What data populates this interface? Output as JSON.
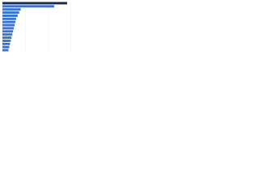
{
  "chart_data": {
    "type": "hbar",
    "categories": [
      null,
      null,
      null,
      null,
      null,
      null,
      null,
      null,
      null,
      null,
      null,
      null,
      null,
      null,
      null,
      null
    ],
    "values": [
      85,
      68,
      24,
      22,
      20,
      18,
      17,
      16,
      15,
      14,
      13,
      12,
      11,
      10,
      9,
      8
    ],
    "colors": [
      "#1b2a4a",
      "#3a74d0",
      "#3a74d0",
      "#3a74d0",
      "#3a74d0",
      "#3a74d0",
      "#3a74d0",
      "#3a74d0",
      "#3a74d0",
      "#3a74d0",
      "#3a74d0",
      "#3a74d0",
      "#3a74d0",
      "#3a74d0",
      "#3a74d0",
      "#3a74d0"
    ],
    "xlim": [
      0,
      100
    ],
    "xticks": [
      0,
      30,
      60,
      90
    ],
    "grid": true
  }
}
